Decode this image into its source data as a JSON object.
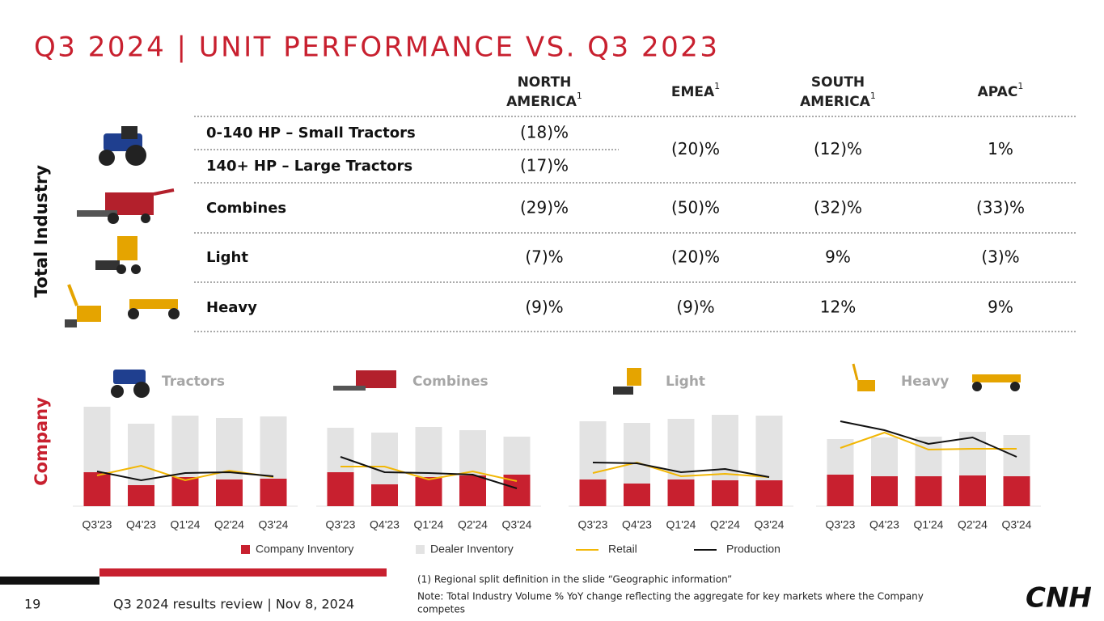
{
  "title": "Q3 2024 | UNIT PERFORMANCE VS. Q3 2023",
  "side_labels": {
    "industry": "Total Industry",
    "company": "Company"
  },
  "table": {
    "headers": [
      {
        "text": "NORTH",
        "text2": "AMERICA",
        "note": "1"
      },
      {
        "text": "EMEA",
        "note": "1"
      },
      {
        "text": "SOUTH",
        "text2": "AMERICA",
        "note": "1"
      },
      {
        "text": "APAC",
        "note": "1"
      }
    ],
    "rows": [
      {
        "label": "0-140 HP – Small Tractors",
        "values": [
          "(18)%",
          "(20)%",
          "(12)%",
          "1%"
        ]
      },
      {
        "label": "140+ HP – Large Tractors",
        "values": [
          "(17)%"
        ]
      },
      {
        "label": "Combines",
        "values": [
          "(29)%",
          "(50)%",
          "(32)%",
          "(33)%"
        ]
      },
      {
        "label": "Light",
        "values": [
          "(7)%",
          "(20)%",
          "9%",
          "(3)%"
        ]
      },
      {
        "label": "Heavy",
        "values": [
          "(9)%",
          "(9)%",
          "12%",
          "9%"
        ]
      }
    ]
  },
  "legend": [
    {
      "name": "Company Inventory",
      "color": "#c8202f",
      "type": "bar"
    },
    {
      "name": "Dealer Inventory",
      "color": "#e3e3e3",
      "type": "bar"
    },
    {
      "name": "Retail",
      "color": "#f2b705",
      "type": "line"
    },
    {
      "name": "Production",
      "color": "#111111",
      "type": "line"
    }
  ],
  "chart_data": [
    {
      "type": "bar",
      "title": "Tractors",
      "categories": [
        "Q3'23",
        "Q4'23",
        "Q1'24",
        "Q2'24",
        "Q3'24"
      ],
      "series": [
        {
          "values": [
            42,
            26,
            36,
            33,
            34
          ]
        },
        {
          "values": [
            81,
            76,
            76,
            76,
            77
          ]
        },
        {
          "values": [
            38,
            50,
            32,
            44,
            36
          ]
        },
        {
          "values": [
            43,
            32,
            41,
            42,
            37
          ]
        }
      ]
    },
    {
      "type": "bar",
      "title": "Combines",
      "categories": [
        "Q3'23",
        "Q4'23",
        "Q1'24",
        "Q2'24",
        "Q3'24"
      ],
      "series": [
        {
          "values": [
            42,
            27,
            36,
            38,
            39
          ]
        },
        {
          "values": [
            55,
            64,
            62,
            56,
            47
          ]
        },
        {
          "values": [
            49,
            49,
            33,
            43,
            31
          ]
        },
        {
          "values": [
            61,
            42,
            41,
            39,
            22
          ]
        }
      ]
    },
    {
      "type": "bar",
      "title": "Light",
      "categories": [
        "Q3'23",
        "Q4'23",
        "Q1'24",
        "Q2'24",
        "Q3'24"
      ],
      "series": [
        {
          "values": [
            33,
            28,
            33,
            32,
            32
          ]
        },
        {
          "values": [
            72,
            75,
            75,
            81,
            80
          ]
        },
        {
          "values": [
            41,
            54,
            37,
            40,
            36
          ]
        },
        {
          "values": [
            54,
            53,
            42,
            46,
            36
          ]
        }
      ]
    },
    {
      "type": "bar",
      "title": "Heavy",
      "categories": [
        "Q3'23",
        "Q4'23",
        "Q1'24",
        "Q2'24",
        "Q3'24"
      ],
      "series": [
        {
          "values": [
            39,
            37,
            37,
            38,
            37
          ]
        },
        {
          "values": [
            44,
            48,
            49,
            54,
            51
          ]
        },
        {
          "values": [
            72,
            91,
            70,
            71,
            71
          ]
        },
        {
          "values": [
            105,
            94,
            77,
            85,
            61
          ]
        }
      ]
    }
  ],
  "footer": {
    "page": "19",
    "event": "Q3 2024 results review | Nov 8, 2024",
    "note1": "(1) Regional split definition in the slide “Geographic information”",
    "note2": "Note: Total Industry Volume % YoY change reflecting the aggregate for key markets where the Company",
    "note3": "competes",
    "logo": "CNH"
  }
}
